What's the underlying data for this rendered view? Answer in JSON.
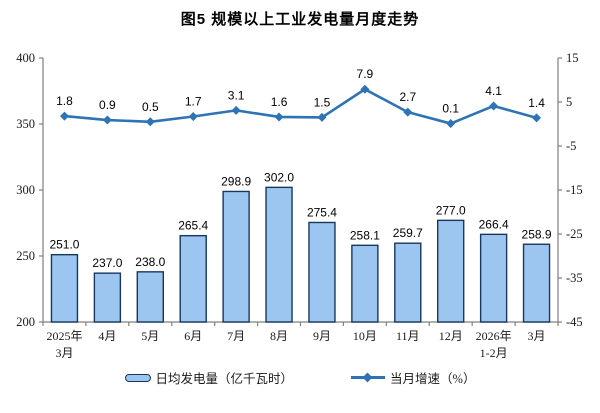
{
  "chart_data": {
    "type": "bar+line",
    "title": "图5  规模以上工业发电量月度走势",
    "categories": [
      [
        "2025年",
        "3月"
      ],
      [
        "4月"
      ],
      [
        "5月"
      ],
      [
        "6月"
      ],
      [
        "7月"
      ],
      [
        "8月"
      ],
      [
        "9月"
      ],
      [
        "10月"
      ],
      [
        "11月"
      ],
      [
        "12月"
      ],
      [
        "2026年",
        "1-2月"
      ],
      [
        "3月"
      ]
    ],
    "series": [
      {
        "name": "日均发电量（亿千瓦时）",
        "type": "bar",
        "axis": "left",
        "values": [
          251.0,
          237.0,
          238.0,
          265.4,
          298.9,
          302.0,
          275.4,
          258.1,
          259.7,
          277.0,
          266.4,
          258.9
        ],
        "fill": "#9CC6F0",
        "stroke": "#17375E"
      },
      {
        "name": "当月增速（%）",
        "type": "line",
        "axis": "right",
        "values": [
          1.8,
          0.9,
          0.5,
          1.7,
          3.1,
          1.6,
          1.5,
          7.9,
          2.7,
          0.1,
          4.1,
          1.4
        ],
        "color": "#2E74B5"
      }
    ],
    "left_axis": {
      "min": 200,
      "max": 400,
      "ticks": [
        400,
        350,
        300,
        250,
        200
      ]
    },
    "right_axis": {
      "min": -45,
      "max": 15,
      "ticks": [
        15,
        5,
        -5,
        -15,
        -25,
        -35,
        -45
      ]
    },
    "legend": [
      {
        "label": "日均发电量（亿千瓦时）",
        "swatch": "bar"
      },
      {
        "label": "当月增速（%）",
        "swatch": "line"
      }
    ],
    "grid": false,
    "legend_position": "bottom",
    "axis_color": "#808080"
  }
}
